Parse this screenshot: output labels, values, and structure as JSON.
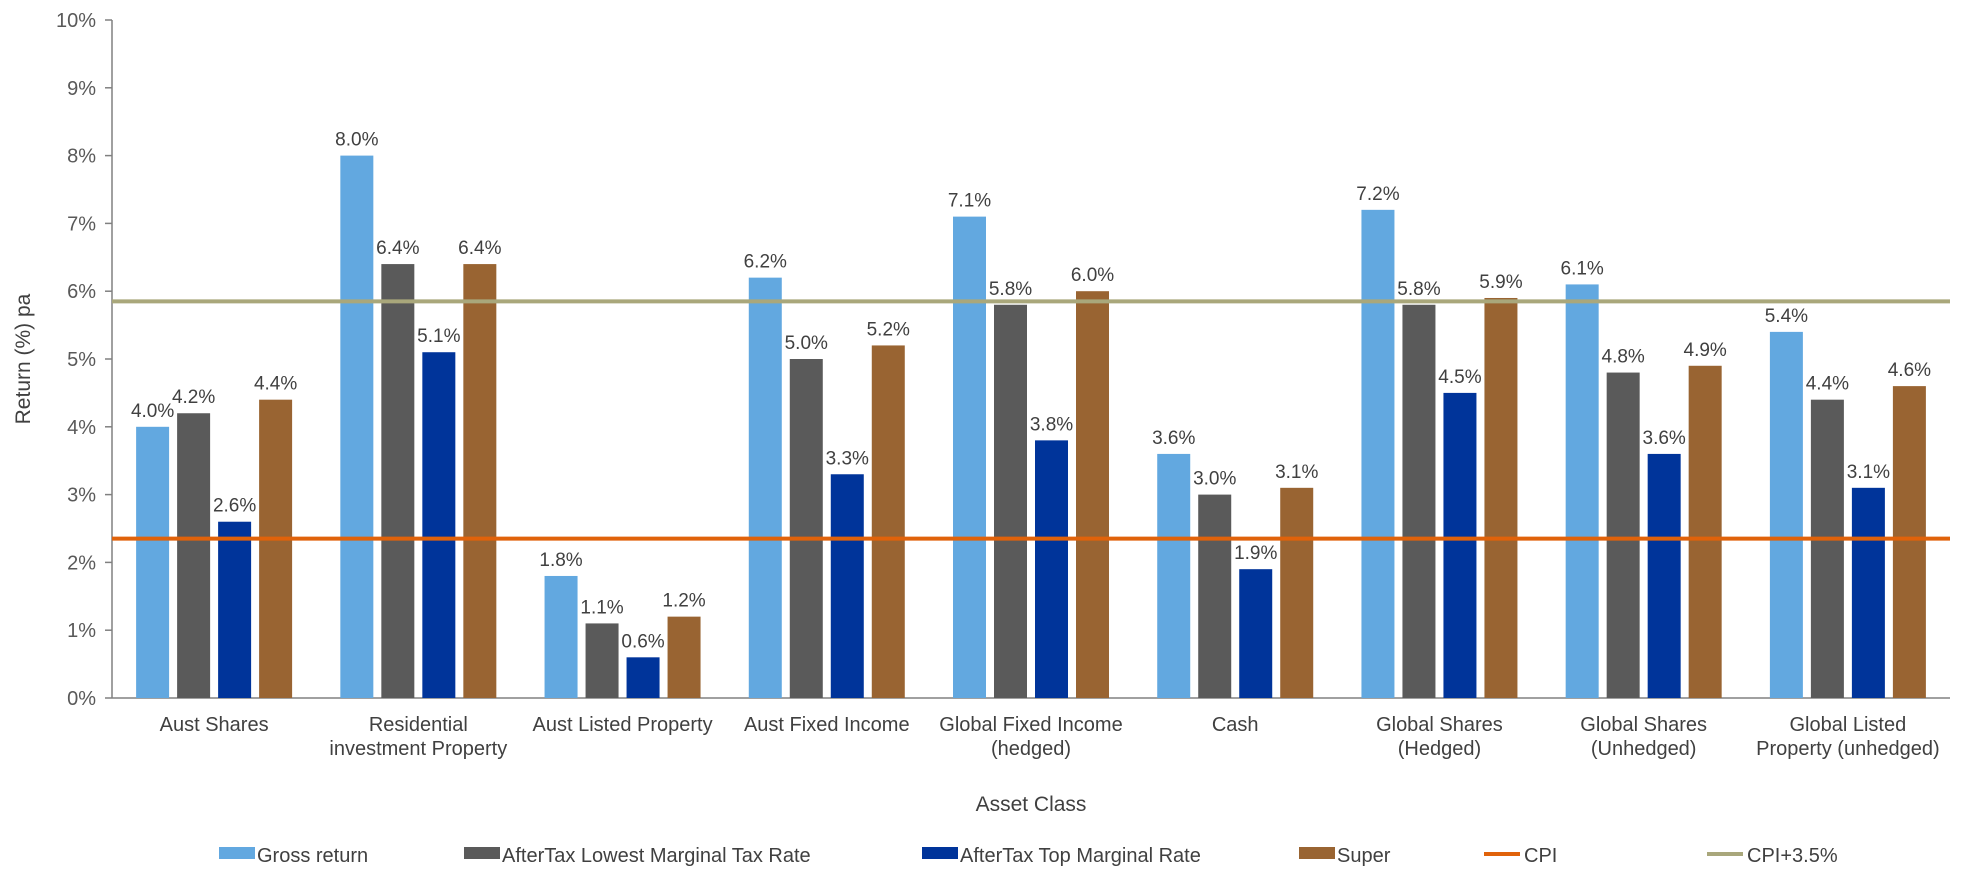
{
  "chart_data": {
    "type": "bar",
    "xlabel": "Asset Class",
    "ylabel": "Return (%) pa",
    "ylim": [
      0,
      10
    ],
    "yticks": [
      "0%",
      "1%",
      "2%",
      "3%",
      "4%",
      "5%",
      "6%",
      "7%",
      "8%",
      "9%",
      "10%"
    ],
    "categories": [
      [
        "Aust Shares"
      ],
      [
        "Residential",
        "investment Property"
      ],
      [
        "Aust Listed Property"
      ],
      [
        "Aust Fixed Income"
      ],
      [
        "Global Fixed Income",
        "(hedged)"
      ],
      [
        "Cash"
      ],
      [
        "Global Shares",
        "(Hedged)"
      ],
      [
        "Global Shares",
        "(Unhedged)"
      ],
      [
        "Global Listed",
        "Property (unhedged)"
      ]
    ],
    "series": [
      {
        "name": "Gross return",
        "color": "#62a8e0",
        "values": [
          4.0,
          8.0,
          1.8,
          6.2,
          7.1,
          3.6,
          7.2,
          6.1,
          5.4
        ],
        "labels": [
          "4.0%",
          "8.0%",
          "1.8%",
          "6.2%",
          "7.1%",
          "3.6%",
          "7.2%",
          "6.1%",
          "5.4%"
        ]
      },
      {
        "name": "AfterTax Lowest Marginal Tax Rate",
        "color": "#5a5a5a",
        "values": [
          4.2,
          6.4,
          1.1,
          5.0,
          5.8,
          3.0,
          5.8,
          4.8,
          4.4
        ],
        "labels": [
          "4.2%",
          "6.4%",
          "1.1%",
          "5.0%",
          "5.8%",
          "3.0%",
          "5.8%",
          "4.8%",
          "4.4%"
        ]
      },
      {
        "name": "AfterTax Top Marginal Rate",
        "color": "#00349a",
        "values": [
          2.6,
          5.1,
          0.6,
          3.3,
          3.8,
          1.9,
          4.5,
          3.6,
          3.1
        ],
        "labels": [
          "2.6%",
          "5.1%",
          "0.6%",
          "3.3%",
          "3.8%",
          "1.9%",
          "4.5%",
          "3.6%",
          "3.1%"
        ]
      },
      {
        "name": "Super",
        "color": "#996432",
        "values": [
          4.4,
          6.4,
          1.2,
          5.2,
          6.0,
          3.1,
          5.9,
          4.9,
          4.6
        ],
        "labels": [
          "4.4%",
          "6.4%",
          "1.2%",
          "5.2%",
          "6.0%",
          "3.1%",
          "5.9%",
          "4.9%",
          "4.6%"
        ]
      }
    ],
    "lines": [
      {
        "name": "CPI",
        "color": "#e0620a",
        "value": 2.35
      },
      {
        "name": "CPI+3.5%",
        "color": "#a9a77b",
        "value": 5.85
      }
    ],
    "grid": false,
    "legend": "bottom"
  }
}
